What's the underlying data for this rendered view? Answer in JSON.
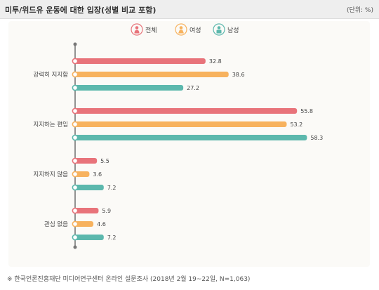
{
  "title": "미투/위드유 운동에 대한 입장(성별 비교 포함)",
  "unit": "(단위: %)",
  "footnote": "※  한국언론진흥재단 미디어연구센터 온라인 설문조사 (2018년 2월 19~22일, N=1,063)",
  "colors": {
    "all": "#e8737a",
    "female": "#f7b25e",
    "male": "#5cb8ad",
    "axis": "#777777",
    "label": "#444444"
  },
  "chart_data": {
    "type": "bar",
    "orientation": "horizontal",
    "legend_position": "top-center",
    "xlim": [
      0,
      60
    ],
    "categories": [
      "강력히 지지함",
      "지지하는 편임",
      "지지하지 않음",
      "관심 없음"
    ],
    "series": [
      {
        "name": "전체",
        "icon": "person-icon",
        "color": "#e8737a",
        "values": [
          32.8,
          55.8,
          5.5,
          5.9
        ]
      },
      {
        "name": "여성",
        "icon": "woman-icon",
        "color": "#f7b25e",
        "values": [
          38.6,
          53.2,
          3.6,
          4.6
        ]
      },
      {
        "name": "남성",
        "icon": "man-icon",
        "color": "#5cb8ad",
        "values": [
          27.2,
          58.3,
          7.2,
          7.2
        ]
      }
    ]
  }
}
